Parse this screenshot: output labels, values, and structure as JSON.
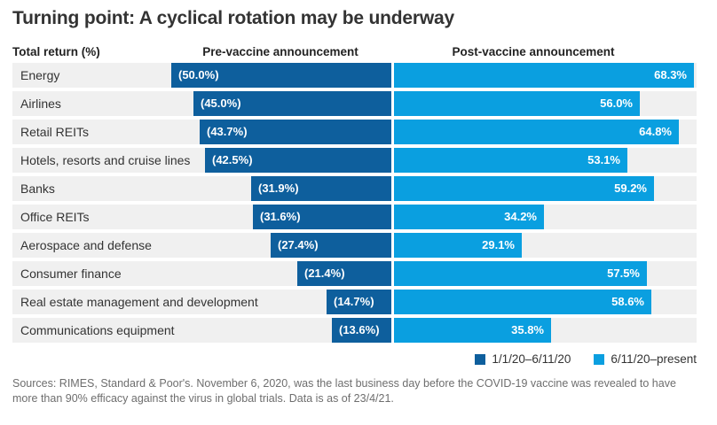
{
  "title": "Turning point: A cyclical rotation may be underway",
  "columns": {
    "left_header": "Total return (%)",
    "pre_header": "Pre-vaccine announcement",
    "post_header": "Post-vaccine announcement"
  },
  "colors": {
    "pre_vaccine": "#0e5f9d",
    "post_vaccine": "#0a9fe0",
    "row_background": "#f0f0f0"
  },
  "chart_data": {
    "type": "bar",
    "orientation": "diverging-horizontal",
    "title": "Turning point: A cyclical rotation may be underway",
    "xlabel": "Total return (%)",
    "value_unit": "%",
    "negative_format": "parentheses",
    "categories": [
      "Energy",
      "Airlines",
      "Retail REITs",
      "Hotels, resorts and cruise lines",
      "Banks",
      "Office REITs",
      "Aerospace and defense",
      "Consumer finance",
      "Real estate management and development",
      "Communications equipment"
    ],
    "series": [
      {
        "name": "1/1/20–6/11/20",
        "side": "pre-vaccine",
        "color": "#0e5f9d",
        "values": [
          -50.0,
          -45.0,
          -43.7,
          -42.5,
          -31.9,
          -31.6,
          -27.4,
          -21.4,
          -14.7,
          -13.6
        ]
      },
      {
        "name": "6/11/20–present",
        "side": "post-vaccine",
        "color": "#0a9fe0",
        "values": [
          68.3,
          56.0,
          64.8,
          53.1,
          59.2,
          34.2,
          29.1,
          57.5,
          58.6,
          35.8
        ]
      }
    ]
  },
  "legend": {
    "items": [
      {
        "label": "1/1/20–6/11/20",
        "color": "#0e5f9d"
      },
      {
        "label": "6/11/20–present",
        "color": "#0a9fe0"
      }
    ]
  },
  "footer": "Sources: RIMES, Standard & Poor's. November 6, 2020, was the last business day before the COVID-19 vaccine was revealed to have more than 90% efficacy against the virus in global trials. Data is as of 23/4/21."
}
